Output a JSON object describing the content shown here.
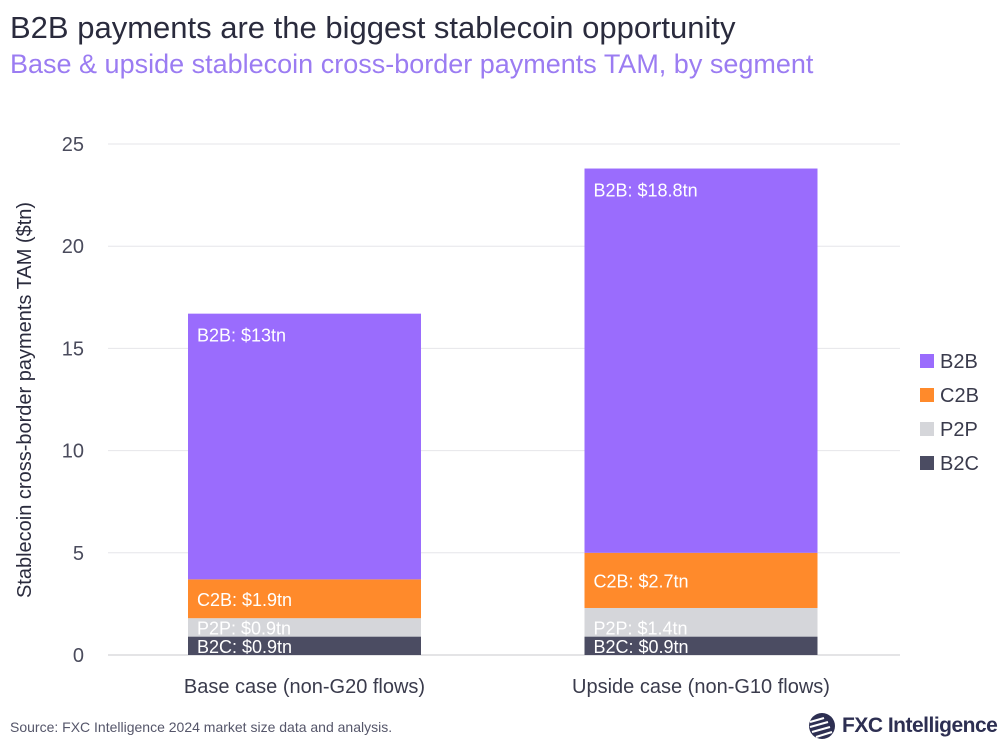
{
  "title": "B2B payments are the biggest stablecoin opportunity",
  "subtitle": "Base & upside stablecoin cross-border payments TAM, by segment",
  "source": "Source: FXC Intelligence 2024 market size data and analysis.",
  "logo": "FXC Intelligence",
  "chart_data": {
    "type": "bar",
    "stacked": true,
    "categories": [
      "Base case (non-G20 flows)",
      "Upside case (non-G10 flows)"
    ],
    "ylabel": "Stablecoin cross-border payments TAM ($tn)",
    "xlabel": "",
    "ylim": [
      0,
      25
    ],
    "yticks": [
      0,
      5,
      10,
      15,
      20,
      25
    ],
    "grid": true,
    "legend_position": "right",
    "series": [
      {
        "name": "B2C",
        "color": "#4b4c62",
        "values": [
          0.9,
          0.9
        ],
        "labels": [
          "B2C: $0.9tn",
          "B2C: $0.9tn"
        ]
      },
      {
        "name": "P2P",
        "color": "#d5d6da",
        "values": [
          0.9,
          1.4
        ],
        "labels": [
          "P2P: $0.9tn",
          "P2P: $1.4tn"
        ]
      },
      {
        "name": "C2B",
        "color": "#ff8a2b",
        "values": [
          1.9,
          2.7
        ],
        "labels": [
          "C2B: $1.9tn",
          "C2B: $2.7tn"
        ]
      },
      {
        "name": "B2B",
        "color": "#9a6cfd",
        "values": [
          13,
          18.8
        ],
        "labels": [
          "B2B: $13tn",
          "B2B: $18.8tn"
        ]
      }
    ],
    "legend_order": [
      "B2B",
      "C2B",
      "P2P",
      "B2C"
    ]
  }
}
